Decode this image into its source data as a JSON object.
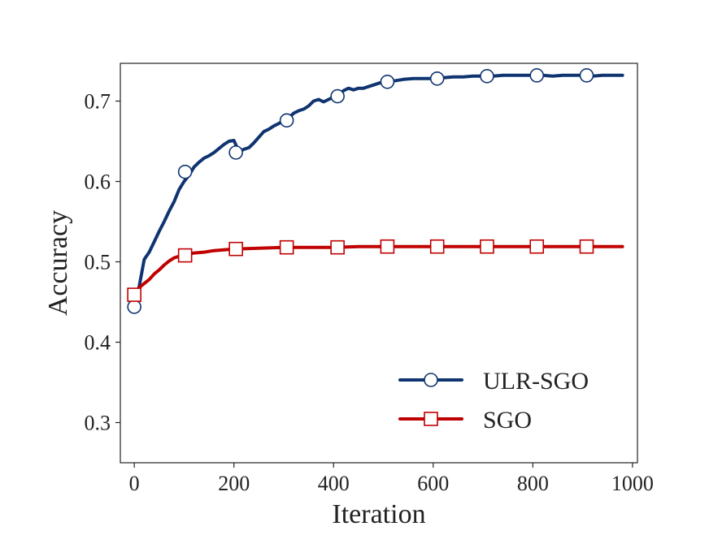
{
  "chart_data": {
    "type": "line",
    "title": "",
    "xlabel": "Iteration",
    "ylabel": "Accuracy",
    "xlim": [
      -28,
      1010
    ],
    "ylim": [
      0.25,
      0.747
    ],
    "xticks": [
      0,
      200,
      400,
      600,
      800,
      1000
    ],
    "xtick_labels": [
      "0",
      "200",
      "400",
      "600",
      "800",
      "1000"
    ],
    "yticks": [
      0.3,
      0.4,
      0.5,
      0.6,
      0.7
    ],
    "ytick_labels": [
      "0.3",
      "0.4",
      "0.5",
      "0.6",
      "0.7"
    ],
    "grid": false,
    "legend_position": "lower-right",
    "series": [
      {
        "name": "ULR-SGO",
        "color": "#0f3470",
        "marker": "circle",
        "x": [
          0,
          10,
          20,
          30,
          40,
          50,
          60,
          70,
          80,
          90,
          100,
          110,
          120,
          130,
          140,
          150,
          160,
          170,
          180,
          190,
          200,
          210,
          220,
          230,
          240,
          250,
          260,
          270,
          280,
          290,
          300,
          310,
          320,
          330,
          340,
          350,
          360,
          370,
          380,
          390,
          400,
          410,
          420,
          430,
          440,
          450,
          460,
          470,
          480,
          490,
          500,
          520,
          540,
          560,
          580,
          600,
          620,
          640,
          660,
          680,
          700,
          720,
          740,
          760,
          780,
          800,
          820,
          840,
          860,
          880,
          900,
          920,
          940,
          960,
          980
        ],
        "values": [
          0.444,
          0.47,
          0.503,
          0.512,
          0.525,
          0.538,
          0.55,
          0.563,
          0.575,
          0.59,
          0.6,
          0.608,
          0.618,
          0.624,
          0.629,
          0.632,
          0.636,
          0.641,
          0.646,
          0.65,
          0.651,
          0.637,
          0.64,
          0.642,
          0.648,
          0.655,
          0.662,
          0.665,
          0.669,
          0.672,
          0.676,
          0.679,
          0.685,
          0.688,
          0.69,
          0.694,
          0.7,
          0.702,
          0.699,
          0.702,
          0.705,
          0.707,
          0.713,
          0.716,
          0.714,
          0.716,
          0.716,
          0.718,
          0.72,
          0.722,
          0.724,
          0.725,
          0.727,
          0.728,
          0.728,
          0.728,
          0.729,
          0.73,
          0.73,
          0.731,
          0.731,
          0.731,
          0.732,
          0.732,
          0.732,
          0.732,
          0.732,
          0.731,
          0.732,
          0.732,
          0.732,
          0.731,
          0.732,
          0.732,
          0.732
        ],
        "marker_x": [
          0,
          102,
          204,
          306,
          408,
          508,
          608,
          708,
          808,
          908
        ],
        "marker_values": [
          0.444,
          0.612,
          0.636,
          0.676,
          0.706,
          0.724,
          0.728,
          0.731,
          0.732,
          0.732
        ]
      },
      {
        "name": "SGO",
        "color": "#c00000",
        "marker": "square",
        "x": [
          0,
          10,
          20,
          30,
          40,
          50,
          60,
          70,
          80,
          90,
          100,
          120,
          140,
          160,
          180,
          200,
          250,
          300,
          350,
          400,
          450,
          500,
          550,
          600,
          650,
          700,
          750,
          800,
          850,
          900,
          950,
          980
        ],
        "values": [
          0.459,
          0.468,
          0.473,
          0.478,
          0.485,
          0.49,
          0.496,
          0.501,
          0.505,
          0.507,
          0.508,
          0.511,
          0.512,
          0.514,
          0.515,
          0.516,
          0.517,
          0.518,
          0.518,
          0.518,
          0.519,
          0.519,
          0.519,
          0.519,
          0.519,
          0.519,
          0.519,
          0.519,
          0.519,
          0.519,
          0.519,
          0.519
        ],
        "marker_x": [
          0,
          102,
          204,
          306,
          408,
          508,
          608,
          708,
          808,
          908
        ],
        "marker_values": [
          0.459,
          0.508,
          0.516,
          0.518,
          0.518,
          0.519,
          0.519,
          0.519,
          0.519,
          0.519
        ]
      }
    ]
  }
}
